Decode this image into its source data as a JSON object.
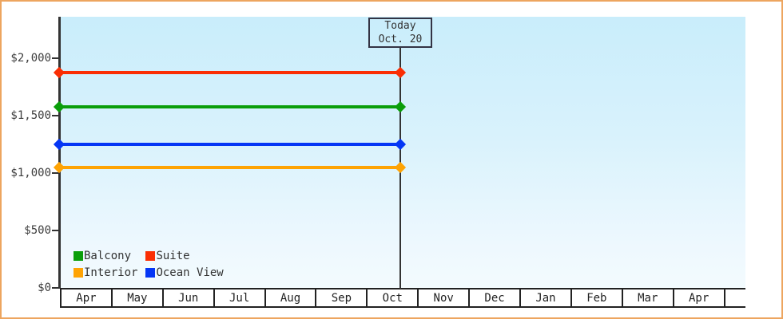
{
  "window": {
    "border_color": "#eda55f",
    "background_color": "#ffffff"
  },
  "chart_data": {
    "type": "line",
    "title": "",
    "xlabel": "",
    "ylabel": "",
    "categories": [
      "Apr",
      "May",
      "Jun",
      "Jul",
      "Aug",
      "Sep",
      "Oct",
      "Nov",
      "Dec",
      "Jan",
      "Feb",
      "Mar",
      "Apr"
    ],
    "y_ticks": [
      {
        "label": "$0",
        "value": 0
      },
      {
        "label": "$500",
        "value": 500
      },
      {
        "label": "$1,000",
        "value": 1000
      },
      {
        "label": "$1,500",
        "value": 1500
      },
      {
        "label": "$2,000",
        "value": 2000
      }
    ],
    "ylim": [
      0,
      2360
    ],
    "grid": false,
    "plot_background_top": "#c9edfb",
    "plot_background_bottom": "#f3fbfe",
    "series": [
      {
        "name": "Suite",
        "value": 1875,
        "color": "#fa2e04",
        "past_style": "solid",
        "future_style": "dotted"
      },
      {
        "name": "Balcony",
        "value": 1575,
        "color": "#0a9e0a",
        "past_style": "solid",
        "future_style": "dotted"
      },
      {
        "name": "Ocean View",
        "value": 1250,
        "color": "#0536f5",
        "past_style": "solid",
        "future_style": "dotted"
      },
      {
        "name": "Interior",
        "value": 1050,
        "color": "#fea304",
        "past_style": "solid",
        "future_style": "dotted"
      }
    ],
    "annotation": {
      "line1": "Today",
      "line2": "Oct. 20",
      "position_month": "Oct",
      "position_day": 20
    },
    "legend_position": "bottom-left"
  },
  "legend": {
    "items": [
      {
        "label": "Balcony",
        "color": "#0a9e0a"
      },
      {
        "label": "Suite",
        "color": "#fa2e04"
      },
      {
        "label": "Interior",
        "color": "#fea304"
      },
      {
        "label": "Ocean View",
        "color": "#0536f5"
      }
    ]
  },
  "today_box": {
    "line1": "Today",
    "line2": "Oct. 20"
  }
}
